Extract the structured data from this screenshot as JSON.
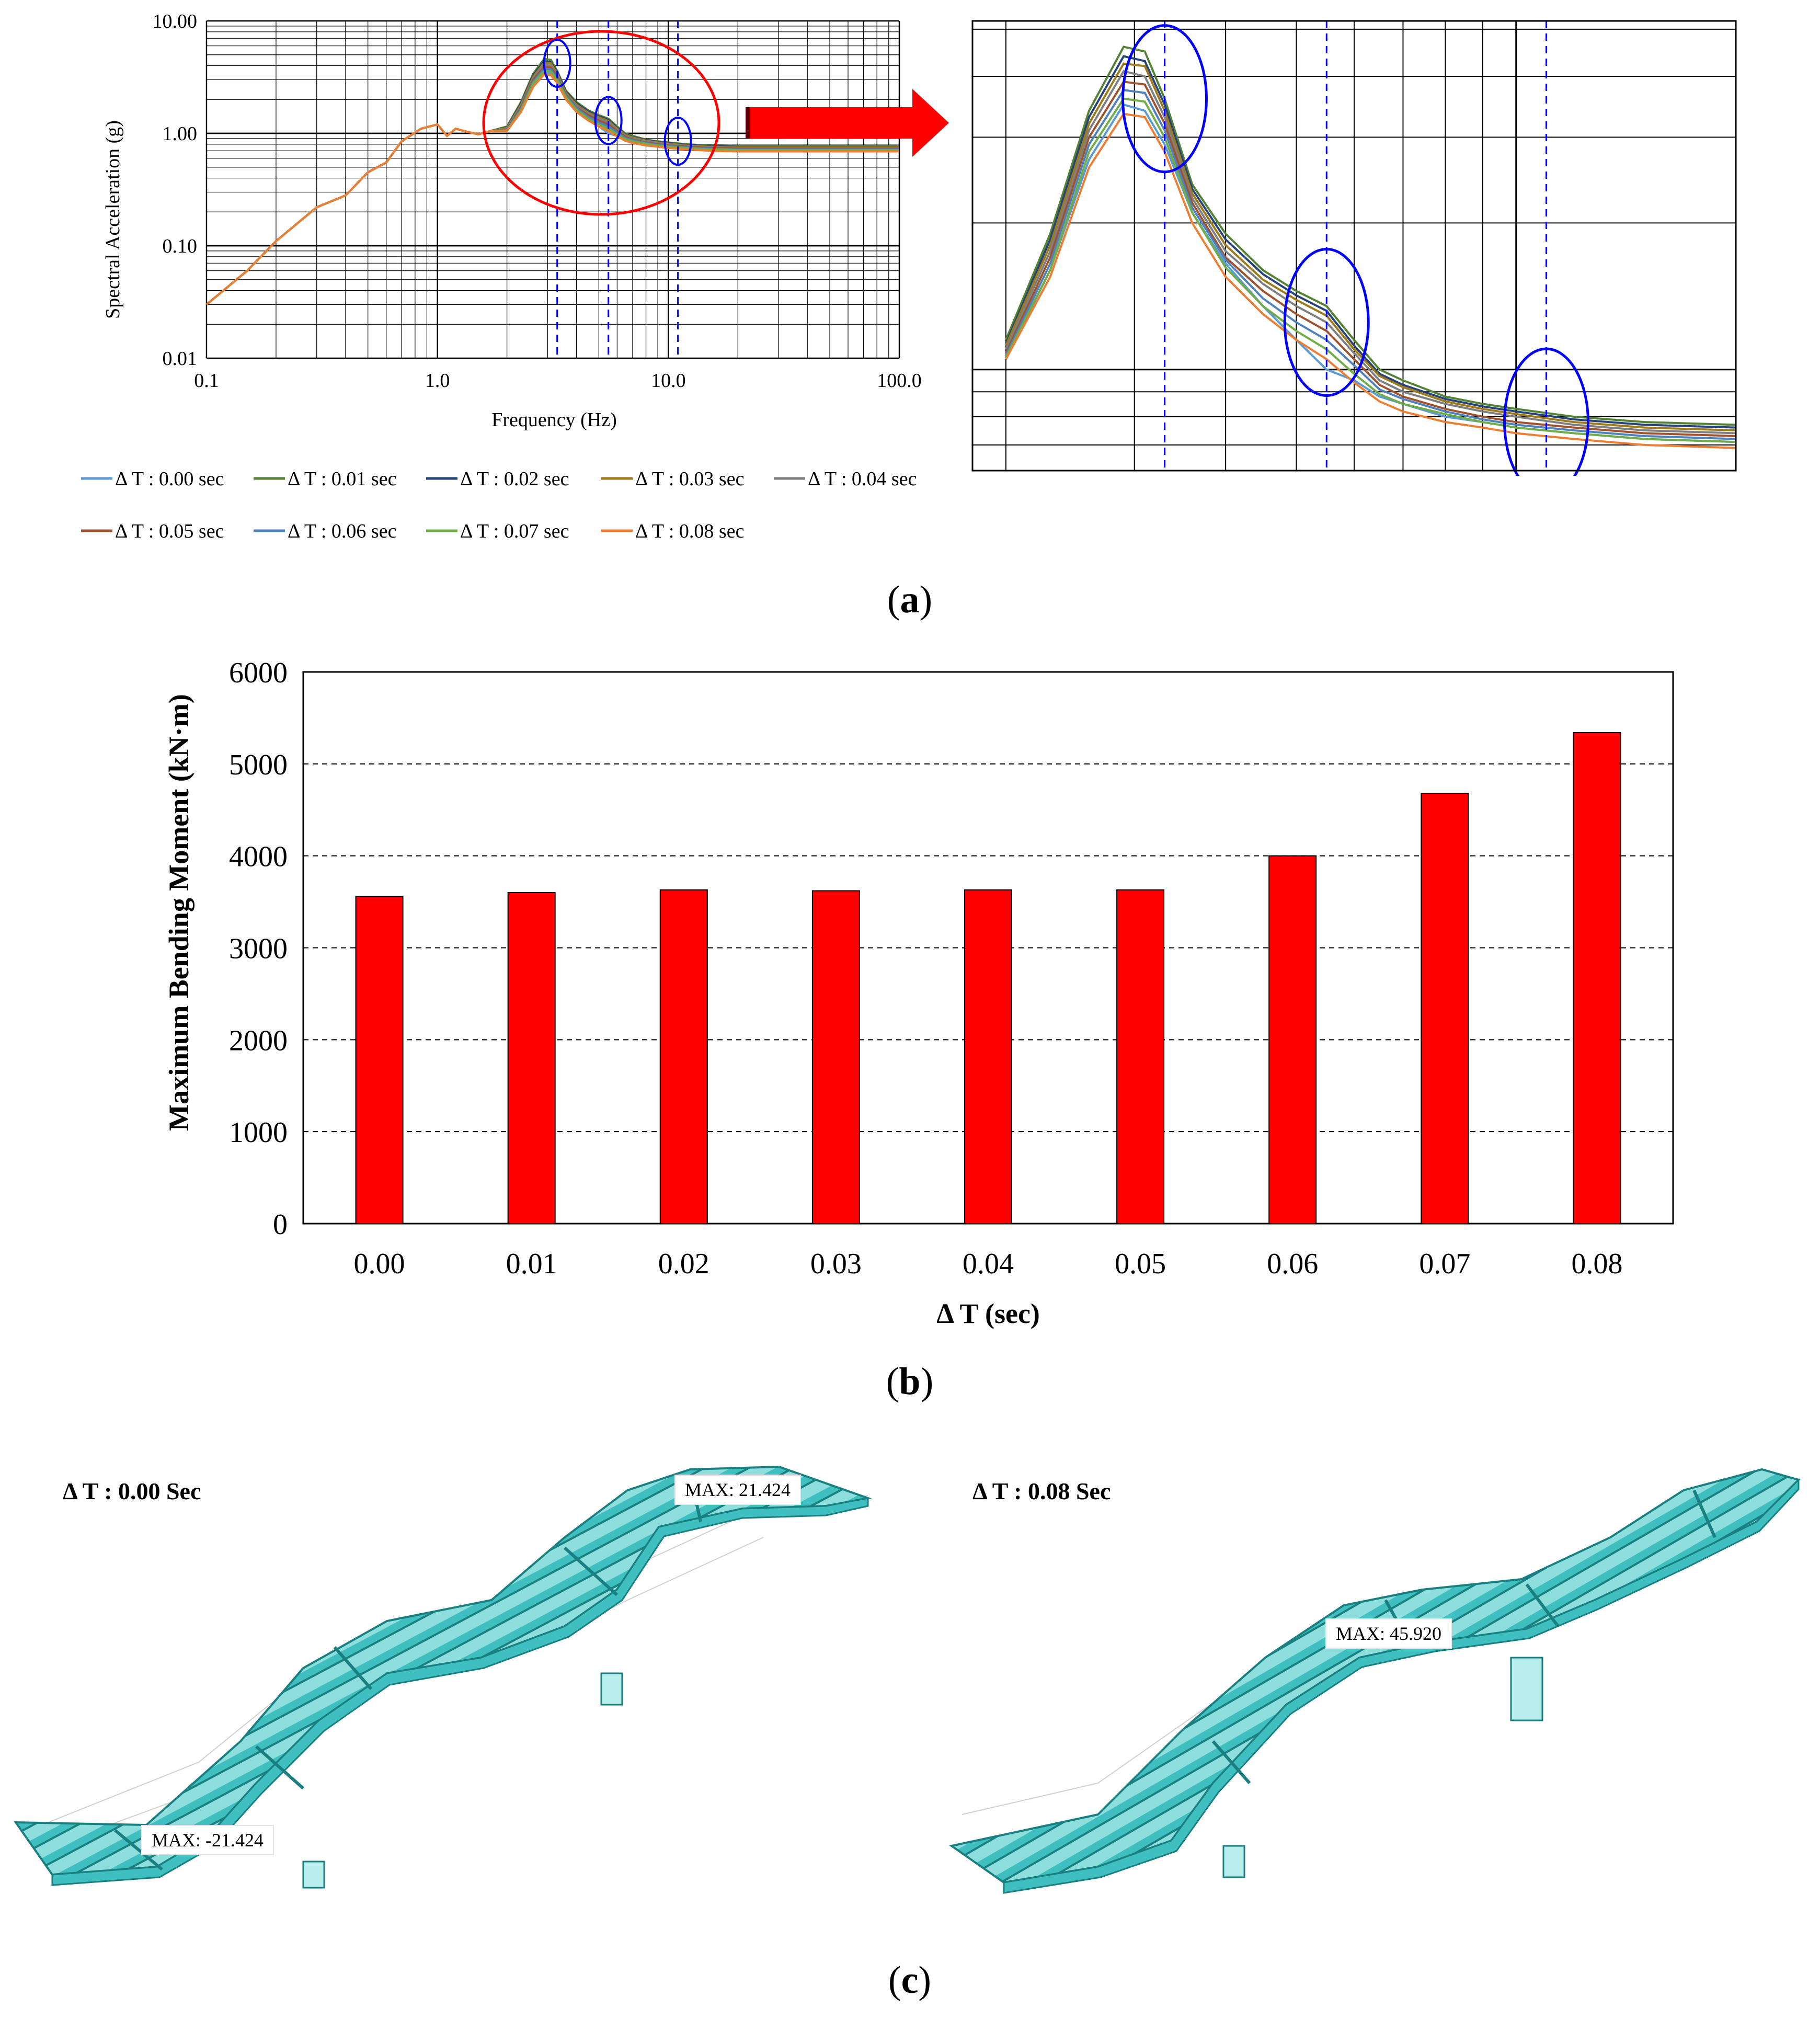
{
  "captions": {
    "a": "a",
    "b": "b",
    "c": "c"
  },
  "chart_data": [
    {
      "id": "spectrum",
      "type": "line",
      "ylabel": "Spectral Acceleration (g)",
      "xlabel": "Frequency (Hz)",
      "xscale": "log",
      "yscale": "log",
      "xlim": [
        0.1,
        100.0
      ],
      "ylim": [
        0.01,
        10.0
      ],
      "x_ticklabels": [
        "0.1",
        "1.0",
        "10.0",
        "100.0"
      ],
      "y_ticklabels": [
        "0.01",
        "0.10",
        "1.00",
        "10.00"
      ],
      "grid": true,
      "legend_position": "bottom",
      "reference_lines_x": [
        3.3,
        5.5,
        11.0
      ],
      "x": [
        0.1,
        0.15,
        0.2,
        0.3,
        0.4,
        0.5,
        0.6,
        0.7,
        0.85,
        1.0,
        1.1,
        1.2,
        1.3,
        1.5,
        1.7,
        2.0,
        2.3,
        2.6,
        2.9,
        3.1,
        3.3,
        3.6,
        4.0,
        4.5,
        5.0,
        5.5,
        6.0,
        6.5,
        7.0,
        8.0,
        9.0,
        10.0,
        12.0,
        15.0,
        20.0,
        30.0,
        50.0,
        100.0
      ],
      "series": [
        {
          "name": "Δ T : 0.00 sec",
          "color": "#5b9bd5",
          "values": [
            0.03,
            0.06,
            0.11,
            0.22,
            0.28,
            0.45,
            0.55,
            0.85,
            1.1,
            1.2,
            0.95,
            1.1,
            1.05,
            0.98,
            1.05,
            1.05,
            1.6,
            2.7,
            3.5,
            3.4,
            2.9,
            2.1,
            1.65,
            1.35,
            1.15,
            1.0,
            0.95,
            0.88,
            0.85,
            0.8,
            0.78,
            0.76,
            0.74,
            0.72,
            0.71,
            0.71,
            0.71,
            0.71
          ]
        },
        {
          "name": "Δ T : 0.01 sec",
          "color": "#548235",
          "values": [
            0.03,
            0.06,
            0.11,
            0.22,
            0.28,
            0.45,
            0.55,
            0.85,
            1.1,
            1.2,
            0.95,
            1.1,
            1.05,
            0.98,
            1.05,
            1.15,
            1.9,
            3.4,
            4.6,
            4.5,
            3.6,
            2.4,
            1.9,
            1.6,
            1.45,
            1.35,
            1.15,
            1.0,
            0.95,
            0.88,
            0.85,
            0.83,
            0.8,
            0.78,
            0.77,
            0.77,
            0.77,
            0.77
          ]
        },
        {
          "name": "Δ T : 0.02 sec",
          "color": "#264478",
          "values": [
            0.03,
            0.06,
            0.11,
            0.22,
            0.28,
            0.45,
            0.55,
            0.85,
            1.1,
            1.2,
            0.95,
            1.1,
            1.05,
            0.98,
            1.05,
            1.13,
            1.85,
            3.3,
            4.4,
            4.3,
            3.5,
            2.35,
            1.85,
            1.57,
            1.42,
            1.32,
            1.12,
            0.98,
            0.93,
            0.87,
            0.84,
            0.82,
            0.79,
            0.77,
            0.76,
            0.76,
            0.76,
            0.76
          ]
        },
        {
          "name": "Δ T : 0.03 sec",
          "color": "#9e7a1a",
          "values": [
            0.03,
            0.06,
            0.11,
            0.22,
            0.28,
            0.45,
            0.55,
            0.85,
            1.1,
            1.2,
            0.95,
            1.1,
            1.05,
            0.98,
            1.05,
            1.12,
            1.8,
            3.2,
            4.25,
            4.2,
            3.4,
            2.3,
            1.8,
            1.53,
            1.39,
            1.29,
            1.1,
            0.97,
            0.92,
            0.86,
            0.83,
            0.81,
            0.78,
            0.76,
            0.75,
            0.75,
            0.75,
            0.75
          ]
        },
        {
          "name": "Δ T : 0.04 sec",
          "color": "#7f7f7f",
          "values": [
            0.03,
            0.06,
            0.11,
            0.22,
            0.28,
            0.45,
            0.55,
            0.85,
            1.1,
            1.2,
            0.95,
            1.1,
            1.05,
            0.98,
            1.05,
            1.1,
            1.75,
            3.1,
            4.1,
            4.0,
            3.3,
            2.25,
            1.75,
            1.5,
            1.35,
            1.25,
            1.08,
            0.95,
            0.9,
            0.85,
            0.82,
            0.8,
            0.77,
            0.75,
            0.74,
            0.74,
            0.74,
            0.74
          ]
        },
        {
          "name": "Δ T : 0.05 sec",
          "color": "#a0522d",
          "values": [
            0.03,
            0.06,
            0.11,
            0.22,
            0.28,
            0.45,
            0.55,
            0.85,
            1.1,
            1.2,
            0.95,
            1.1,
            1.05,
            0.98,
            1.05,
            1.08,
            1.7,
            3.0,
            3.9,
            3.85,
            3.2,
            2.2,
            1.7,
            1.45,
            1.3,
            1.2,
            1.05,
            0.93,
            0.88,
            0.83,
            0.8,
            0.78,
            0.76,
            0.74,
            0.73,
            0.73,
            0.73,
            0.73
          ]
        },
        {
          "name": "Δ T : 0.06 sec",
          "color": "#4f81bd",
          "values": [
            0.03,
            0.06,
            0.11,
            0.22,
            0.28,
            0.45,
            0.55,
            0.85,
            1.1,
            1.2,
            0.95,
            1.1,
            1.05,
            0.98,
            1.05,
            1.07,
            1.65,
            2.9,
            3.75,
            3.7,
            3.1,
            2.15,
            1.68,
            1.4,
            1.25,
            1.15,
            1.02,
            0.91,
            0.87,
            0.82,
            0.79,
            0.77,
            0.75,
            0.73,
            0.72,
            0.72,
            0.72,
            0.72
          ]
        },
        {
          "name": "Δ T : 0.07 sec",
          "color": "#70ad47",
          "values": [
            0.03,
            0.06,
            0.11,
            0.22,
            0.28,
            0.45,
            0.55,
            0.85,
            1.1,
            1.2,
            0.95,
            1.1,
            1.05,
            0.98,
            1.05,
            1.06,
            1.6,
            2.8,
            3.6,
            3.55,
            3.0,
            2.1,
            1.62,
            1.35,
            1.2,
            1.1,
            0.98,
            0.89,
            0.85,
            0.81,
            0.78,
            0.76,
            0.74,
            0.72,
            0.71,
            0.71,
            0.71,
            0.71
          ]
        },
        {
          "name": "Δ T : 0.08 sec",
          "color": "#ed7d31",
          "values": [
            0.03,
            0.06,
            0.11,
            0.22,
            0.28,
            0.45,
            0.55,
            0.85,
            1.1,
            1.2,
            0.95,
            1.1,
            1.05,
            0.98,
            1.05,
            1.05,
            1.55,
            2.6,
            3.35,
            3.3,
            2.8,
            2.0,
            1.55,
            1.3,
            1.15,
            1.05,
            0.94,
            0.86,
            0.82,
            0.78,
            0.76,
            0.74,
            0.72,
            0.7,
            0.69,
            0.69,
            0.69,
            0.69
          ]
        }
      ]
    },
    {
      "id": "spectrum-zoom",
      "type": "line",
      "xscale": "log",
      "yscale": "log",
      "xlim": [
        1.8,
        20.0
      ],
      "ylim": [
        0.62,
        5.2
      ],
      "grid": true,
      "series_ref": "spectrum"
    },
    {
      "id": "moment",
      "type": "bar",
      "categories": [
        "0.00",
        "0.01",
        "0.02",
        "0.03",
        "0.04",
        "0.05",
        "0.06",
        "0.07",
        "0.08"
      ],
      "values": [
        3560,
        3600,
        3630,
        3620,
        3630,
        3630,
        4000,
        4680,
        5340
      ],
      "xlabel": "Δ T (sec)",
      "ylabel": "Maximum Bending Moment (kN·m)",
      "ylim": [
        0,
        6000
      ],
      "yticks": [
        "0",
        "1000",
        "2000",
        "3000",
        "4000",
        "5000",
        "6000"
      ],
      "bar_color": "#ff0000",
      "grid": "dashed horizontal"
    }
  ],
  "bridge_models": [
    {
      "label": "Δ T : 0.00 Sec",
      "max_labels": [
        "MAX: 21.424",
        "MAX: -21.424"
      ]
    },
    {
      "label": "Δ T : 0.08 Sec",
      "max_labels": [
        "MAX: 45.920"
      ]
    }
  ],
  "colors": {
    "bridge": "#3fbfbf",
    "bridge_dark": "#1a7f80",
    "bridge_light": "#b8eeee",
    "highlight_circle": "#ff0000",
    "zoom_circle": "#0000ff"
  }
}
